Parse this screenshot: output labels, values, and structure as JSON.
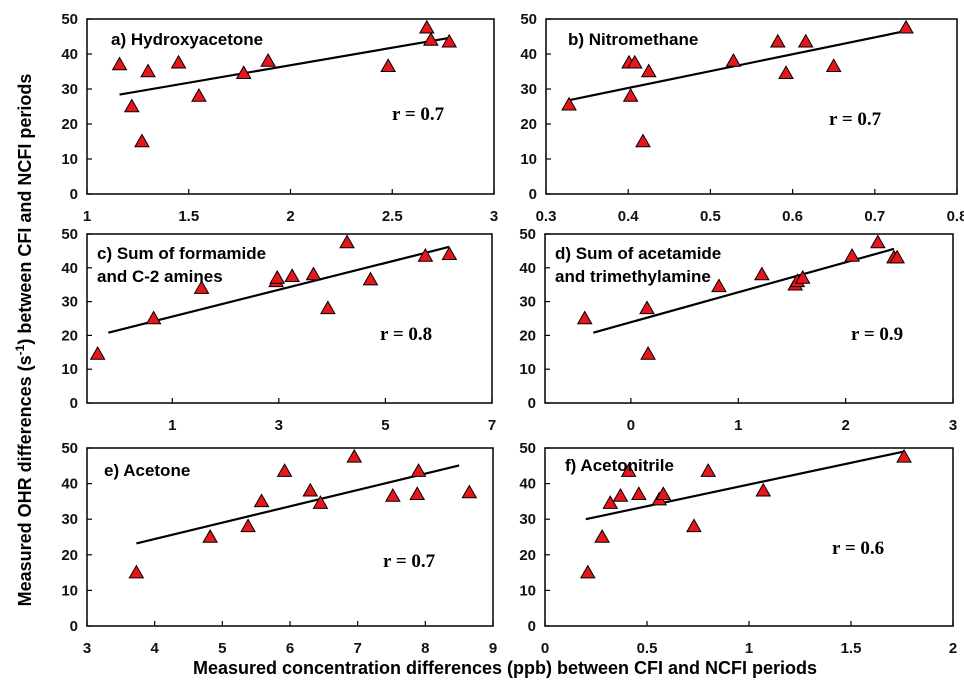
{
  "y_axis_label_prefix": "Measured OHR differences (s",
  "y_axis_label_sup": "-1",
  "y_axis_label_suffix": ") between CFI and NCFI periods",
  "x_axis_label": "Measured concentration differences (ppb) between CFI and NCFI periods",
  "colors": {
    "marker_fill": "#e8161b",
    "marker_stroke": "#000000",
    "fit_line": "#000000",
    "frame": "#000000"
  },
  "chart_data": [
    {
      "type": "scatter",
      "label_lines": [
        "a) Hydroxyacetone"
      ],
      "r_text": "r = 0.7",
      "xlim": [
        1,
        3
      ],
      "ylim": [
        0,
        50
      ],
      "xticks": [
        1,
        1.5,
        2,
        2.5,
        3
      ],
      "xtick_labels": [
        "1",
        "1.5",
        "2",
        "2.5",
        "3"
      ],
      "yticks": [
        0,
        10,
        20,
        30,
        40,
        50
      ],
      "ytick_labels": [
        "0",
        "10",
        "20",
        "30",
        "40",
        "50"
      ],
      "x": [
        1.16,
        1.22,
        1.27,
        1.3,
        1.45,
        1.55,
        1.77,
        1.89,
        2.48,
        2.67,
        2.69,
        2.78
      ],
      "y": [
        37,
        25,
        15,
        35,
        37.5,
        28,
        34.5,
        38,
        36.5,
        47.5,
        44,
        43.5
      ],
      "fit": {
        "x": [
          1.16,
          2.78
        ],
        "y": [
          28.4,
          44.6
        ]
      }
    },
    {
      "type": "scatter",
      "label_lines": [
        "b) Nitromethane"
      ],
      "r_text": "r = 0.7",
      "xlim": [
        0.3,
        0.8
      ],
      "ylim": [
        0,
        50
      ],
      "xticks": [
        0.3,
        0.4,
        0.5,
        0.6,
        0.7,
        0.8
      ],
      "xtick_labels": [
        "0.3",
        "0.4",
        "0.5",
        "0.6",
        "0.7",
        "0.8"
      ],
      "yticks": [
        0,
        10,
        20,
        30,
        40,
        50
      ],
      "ytick_labels": [
        "0",
        "10",
        "20",
        "30",
        "40",
        "50"
      ],
      "x": [
        0.328,
        0.401,
        0.403,
        0.408,
        0.418,
        0.425,
        0.528,
        0.582,
        0.592,
        0.616,
        0.65,
        0.738
      ],
      "y": [
        25.5,
        37.5,
        28,
        37.5,
        15,
        35,
        38,
        43.5,
        34.5,
        43.5,
        36.5,
        47.5
      ],
      "fit": {
        "x": [
          0.328,
          0.738
        ],
        "y": [
          26.8,
          46.6
        ]
      }
    },
    {
      "type": "scatter",
      "label_lines": [
        "c) Sum of formamide",
        "and C-2 amines"
      ],
      "r_text": "r = 0.8",
      "xlim": [
        -0.6,
        7
      ],
      "ylim": [
        0,
        50
      ],
      "xticks": [
        1,
        3,
        5,
        7
      ],
      "xtick_labels": [
        "1",
        "3",
        "5",
        "7"
      ],
      "yticks": [
        0,
        10,
        20,
        30,
        40,
        50
      ],
      "ytick_labels": [
        "0",
        "10",
        "20",
        "30",
        "40",
        "50"
      ],
      "x": [
        -0.4,
        0.65,
        1.55,
        2.95,
        2.97,
        3.25,
        3.65,
        3.92,
        4.28,
        4.72,
        5.75,
        6.2
      ],
      "y": [
        14.5,
        25,
        34,
        36,
        37,
        37.5,
        38,
        28,
        47.5,
        36.5,
        43.5,
        44
      ],
      "fit": {
        "x": [
          -0.2,
          6.2
        ],
        "y": [
          20.8,
          46.2
        ]
      }
    },
    {
      "type": "scatter",
      "label_lines": [
        "d) Sum of acetamide",
        "and trimethylamine"
      ],
      "r_text": "r = 0.9",
      "xlim": [
        -0.8,
        3
      ],
      "ylim": [
        0,
        50
      ],
      "xticks": [
        0,
        1,
        2,
        3
      ],
      "xtick_labels": [
        "0",
        "1",
        "2",
        "3"
      ],
      "yticks": [
        0,
        10,
        20,
        30,
        40,
        50
      ],
      "ytick_labels": [
        "0",
        "10",
        "20",
        "30",
        "40",
        "50"
      ],
      "x": [
        -0.43,
        0.15,
        0.16,
        0.82,
        1.22,
        1.53,
        1.55,
        1.6,
        2.06,
        2.3,
        2.45,
        2.48
      ],
      "y": [
        25,
        28,
        14.5,
        34.5,
        38,
        35,
        36,
        37,
        43.5,
        47.5,
        43,
        43
      ],
      "fit": {
        "x": [
          -0.35,
          2.45
        ],
        "y": [
          20.8,
          45.6
        ]
      }
    },
    {
      "type": "scatter",
      "label_lines": [
        "e) Acetone"
      ],
      "r_text": "r = 0.7",
      "xlim": [
        3,
        9
      ],
      "ylim": [
        0,
        50
      ],
      "xticks": [
        3,
        4,
        5,
        6,
        7,
        8,
        9
      ],
      "xtick_labels": [
        "3",
        "4",
        "5",
        "6",
        "7",
        "8",
        "9"
      ],
      "yticks": [
        0,
        10,
        20,
        30,
        40,
        50
      ],
      "ytick_labels": [
        "0",
        "10",
        "20",
        "30",
        "40",
        "50"
      ],
      "x": [
        3.73,
        4.82,
        5.38,
        5.58,
        5.92,
        6.3,
        6.45,
        6.95,
        7.52,
        7.88,
        7.9,
        8.65
      ],
      "y": [
        15,
        25,
        28,
        35,
        43.5,
        38,
        34.5,
        47.5,
        36.5,
        37,
        43.5,
        37.5
      ],
      "fit": {
        "x": [
          3.73,
          8.5
        ],
        "y": [
          23.2,
          45.1
        ]
      }
    },
    {
      "type": "scatter",
      "label_lines": [
        "f) Acetonitrile"
      ],
      "r_text": "r = 0.6",
      "xlim": [
        0,
        2
      ],
      "ylim": [
        0,
        50
      ],
      "xticks": [
        0,
        0.5,
        1,
        1.5,
        2
      ],
      "xtick_labels": [
        "0",
        "0.5",
        "1",
        "1.5",
        "2"
      ],
      "yticks": [
        0,
        10,
        20,
        30,
        40,
        50
      ],
      "ytick_labels": [
        "0",
        "10",
        "20",
        "30",
        "40",
        "50"
      ],
      "x": [
        0.21,
        0.28,
        0.32,
        0.37,
        0.41,
        0.46,
        0.56,
        0.58,
        0.73,
        0.8,
        1.07,
        1.76
      ],
      "y": [
        15,
        25,
        34.5,
        36.5,
        43.5,
        37,
        35.5,
        37,
        28,
        43.5,
        38,
        47.5
      ],
      "fit": {
        "x": [
          0.2,
          1.76
        ],
        "y": [
          30,
          49
        ]
      }
    }
  ]
}
